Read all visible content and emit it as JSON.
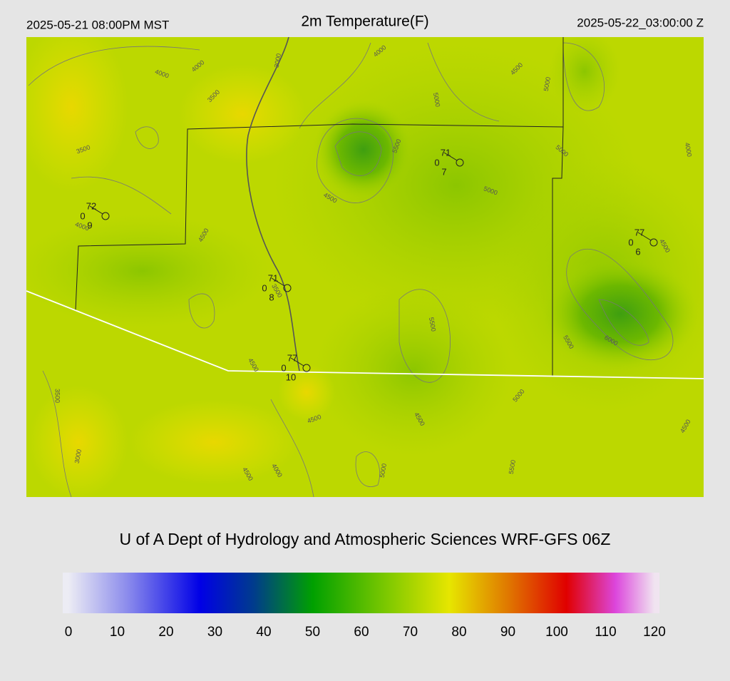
{
  "header": {
    "local_time": "2025-05-21 08:00PM MST",
    "title": "2m Temperature(F)",
    "valid_time": "2025-05-22_03:00:00 Z"
  },
  "map": {
    "contours": [
      4000,
      4000,
      3500,
      3000,
      4000,
      4500,
      5000,
      5000,
      5500,
      5000,
      4000,
      3500,
      4500,
      5000,
      4000,
      4500,
      4500,
      3500,
      5500,
      5500,
      6000,
      4500,
      3500,
      5000,
      4500,
      4500,
      4500,
      3000,
      4000,
      4500,
      5000,
      5500
    ],
    "stations": [
      {
        "temp": 72,
        "dew": 9,
        "wind": 0
      },
      {
        "temp": 71,
        "dew": 8,
        "wind": 0
      },
      {
        "temp": 71,
        "dew": 7,
        "wind": 0
      },
      {
        "temp": 77,
        "dew": 6,
        "wind": 0
      },
      {
        "temp": 77,
        "dew": 10,
        "wind": 0
      }
    ]
  },
  "credit": "U of A Dept of Hydrology and Atmospheric Sciences WRF-GFS 06Z",
  "colorbar": {
    "ticks": [
      0,
      10,
      20,
      30,
      40,
      50,
      60,
      70,
      80,
      90,
      100,
      110,
      120
    ],
    "stops": [
      {
        "value": 0,
        "color": "#ececf4"
      },
      {
        "value": 12,
        "color": "#8c8cec"
      },
      {
        "value": 27,
        "color": "#0000e6"
      },
      {
        "value": 38,
        "color": "#003c8c"
      },
      {
        "value": 50,
        "color": "#00a000"
      },
      {
        "value": 65,
        "color": "#7cc800"
      },
      {
        "value": 78,
        "color": "#e6e600"
      },
      {
        "value": 90,
        "color": "#e07800"
      },
      {
        "value": 102,
        "color": "#e00000"
      },
      {
        "value": 112,
        "color": "#dc46dc"
      },
      {
        "value": 120,
        "color": "#f0e4f0"
      }
    ]
  }
}
